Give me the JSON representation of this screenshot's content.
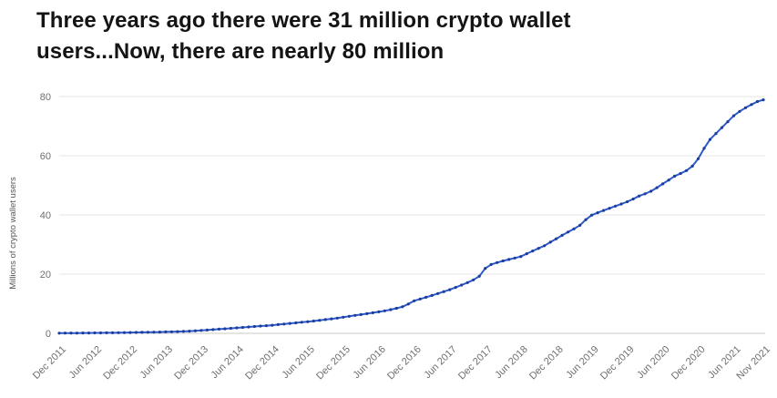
{
  "title": {
    "line1": "Three years ago there were 31 million crypto wallet",
    "line2": "users...Now, there are nearly 80 million"
  },
  "chart_data": {
    "type": "line",
    "title": "Three years ago there were 31 million crypto wallet users...Now, there are nearly 80 million",
    "xlabel": "",
    "ylabel": "Millions of crypto wallet users",
    "unit": "millions of crypto wallet users",
    "ylim": [
      0,
      80
    ],
    "yticks": [
      0,
      20,
      40,
      60,
      80
    ],
    "grid": "horizontal",
    "legend": "none",
    "line_color": "#2d5bc8",
    "marker_color": "#1c3d9e",
    "gridline_color": "#e4e4e4",
    "axis_line_color": "#c9c9c9",
    "tick_label_color": "#6f6f6f",
    "start_month": "Dec 2011",
    "end_month": "Nov 2021",
    "x_tick_labels": [
      "Dec 2011",
      "Jun 2012",
      "Dec 2012",
      "Jun 2013",
      "Dec 2013",
      "Jun 2014",
      "Dec 2014",
      "Jun 2015",
      "Dec 2015",
      "Jun 2016",
      "Dec 2016",
      "Jun 2017",
      "Dec 2017",
      "Jun 2018",
      "Dec 2018",
      "Jun 2019",
      "Dec 2019",
      "Jun 2020",
      "Dec 2020",
      "Jun 2021",
      "Nov 2021"
    ],
    "x_tick_month_index": [
      0,
      6,
      12,
      18,
      24,
      30,
      36,
      42,
      48,
      54,
      60,
      66,
      72,
      78,
      84,
      90,
      96,
      102,
      108,
      114,
      119
    ],
    "values": [
      0.06,
      0.08,
      0.09,
      0.1,
      0.11,
      0.12,
      0.14,
      0.16,
      0.18,
      0.2,
      0.22,
      0.24,
      0.27,
      0.3,
      0.33,
      0.36,
      0.4,
      0.44,
      0.48,
      0.53,
      0.59,
      0.66,
      0.75,
      0.85,
      0.97,
      1.1,
      1.25,
      1.4,
      1.55,
      1.7,
      1.85,
      2.0,
      2.15,
      2.3,
      2.45,
      2.6,
      2.75,
      2.95,
      3.15,
      3.35,
      3.55,
      3.75,
      3.95,
      4.15,
      4.4,
      4.65,
      4.9,
      5.15,
      5.45,
      5.75,
      6.05,
      6.35,
      6.65,
      6.95,
      7.25,
      7.6,
      8.0,
      8.45,
      9.0,
      9.9,
      10.98,
      11.6,
      12.2,
      12.8,
      13.45,
      14.1,
      14.75,
      15.5,
      16.3,
      17.15,
      18.05,
      19.3,
      21.95,
      23.25,
      23.9,
      24.45,
      24.95,
      25.45,
      25.95,
      26.9,
      27.8,
      28.7,
      29.6,
      30.8,
      31.95,
      33.1,
      34.2,
      35.3,
      36.5,
      38.4,
      39.95,
      40.75,
      41.5,
      42.25,
      43.0,
      43.7,
      44.45,
      45.4,
      46.4,
      47.15,
      48.0,
      49.2,
      50.5,
      51.8,
      53.1,
      54.0,
      55.0,
      56.5,
      59.0,
      62.5,
      65.5,
      67.5,
      69.5,
      71.5,
      73.5,
      75.0,
      76.2,
      77.3,
      78.3,
      78.9
    ]
  }
}
